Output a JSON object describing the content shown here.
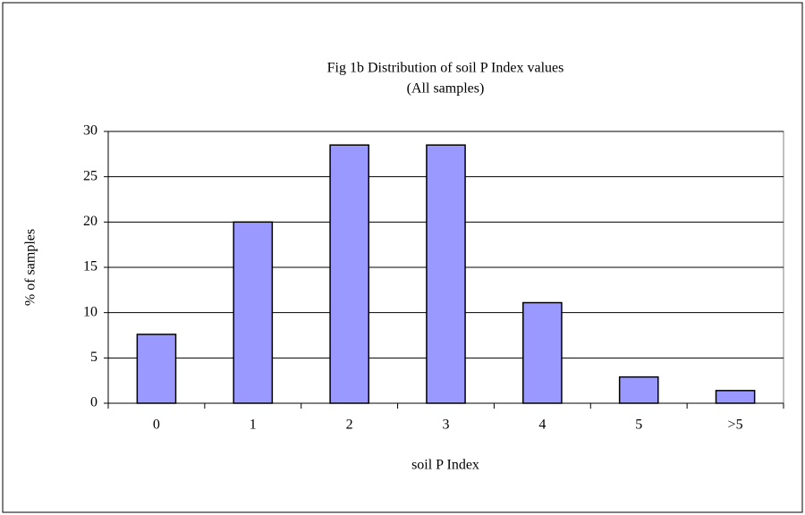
{
  "chart_data": {
    "type": "bar",
    "title": "Fig 1b Distribution of soil P Index values",
    "subtitle": "(All samples)",
    "x_label": "soil P Index",
    "y_label": "% of samples",
    "categories": [
      "0",
      "1",
      "2",
      "3",
      "4",
      "5",
      ">5"
    ],
    "values": [
      7.6,
      20,
      28.5,
      28.5,
      11.1,
      2.9,
      1.4
    ],
    "color": "#9999ff",
    "ylim": [
      0,
      30
    ],
    "yticks": [
      0,
      5,
      10,
      15,
      20,
      25,
      30
    ],
    "grid": true
  }
}
